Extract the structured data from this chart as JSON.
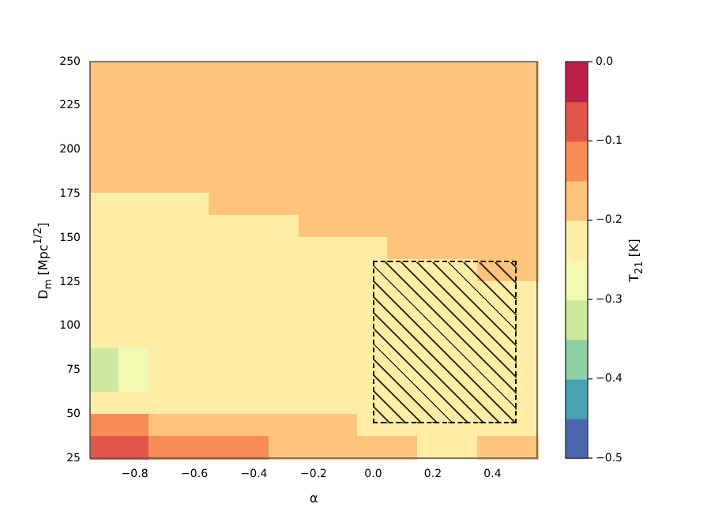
{
  "chart_data": {
    "type": "heatmap",
    "xlabel": "α",
    "ylabel": "D$_{m}$ [Mpc$^{1/2}$]",
    "clabel": "T$_{21}$ [K]",
    "xlim": [
      -0.95,
      0.55
    ],
    "ylim": [
      25,
      250
    ],
    "xticks": [
      {
        "value": -0.8,
        "label": "−0.8"
      },
      {
        "value": -0.6,
        "label": "−0.6"
      },
      {
        "value": -0.4,
        "label": "−0.4"
      },
      {
        "value": -0.2,
        "label": "−0.2"
      },
      {
        "value": 0,
        "label": "0.0"
      },
      {
        "value": 0.2,
        "label": "0.2"
      },
      {
        "value": 0.4,
        "label": "0.4"
      }
    ],
    "yticks": [
      25,
      50,
      75,
      100,
      125,
      150,
      175,
      200,
      225,
      250
    ],
    "clim": [
      -0.5,
      0
    ],
    "cticks": [
      {
        "value": 0,
        "label": "0.0"
      },
      {
        "value": -0.1,
        "label": "−0.1"
      },
      {
        "value": -0.2,
        "label": "−0.2"
      },
      {
        "value": -0.3,
        "label": "−0.3"
      },
      {
        "value": -0.4,
        "label": "−0.4"
      },
      {
        "value": -0.5,
        "label": "−0.5"
      }
    ],
    "cells": [
      [
        -0.175,
        -0.175,
        -0.175,
        -0.175,
        -0.175,
        -0.175,
        -0.175,
        -0.175,
        -0.175,
        -0.175,
        -0.175,
        -0.175,
        -0.175,
        -0.175,
        -0.175
      ],
      [
        -0.175,
        -0.175,
        -0.175,
        -0.175,
        -0.175,
        -0.175,
        -0.175,
        -0.175,
        -0.175,
        -0.175,
        -0.175,
        -0.175,
        -0.175,
        -0.175,
        -0.175
      ],
      [
        -0.175,
        -0.175,
        -0.175,
        -0.175,
        -0.175,
        -0.175,
        -0.175,
        -0.175,
        -0.175,
        -0.175,
        -0.175,
        -0.175,
        -0.175,
        -0.175,
        -0.175
      ],
      [
        -0.175,
        -0.175,
        -0.175,
        -0.175,
        -0.175,
        -0.175,
        -0.175,
        -0.175,
        -0.175,
        -0.175,
        -0.175,
        -0.175,
        -0.175,
        -0.175,
        -0.175
      ],
      [
        -0.175,
        -0.175,
        -0.175,
        -0.175,
        -0.175,
        -0.175,
        -0.175,
        -0.175,
        -0.175,
        -0.175,
        -0.175,
        -0.175,
        -0.175,
        -0.175,
        -0.175
      ],
      [
        -0.175,
        -0.175,
        -0.175,
        -0.175,
        -0.175,
        -0.175,
        -0.175,
        -0.175,
        -0.175,
        -0.175,
        -0.175,
        -0.175,
        -0.175,
        -0.175,
        -0.175
      ],
      [
        -0.225,
        -0.225,
        -0.225,
        -0.225,
        -0.175,
        -0.175,
        -0.175,
        -0.175,
        -0.175,
        -0.175,
        -0.175,
        -0.175,
        -0.175,
        -0.175,
        -0.175
      ],
      [
        -0.225,
        -0.225,
        -0.225,
        -0.225,
        -0.225,
        -0.225,
        -0.225,
        -0.175,
        -0.175,
        -0.175,
        -0.175,
        -0.175,
        -0.175,
        -0.175,
        -0.175
      ],
      [
        -0.225,
        -0.225,
        -0.225,
        -0.225,
        -0.225,
        -0.225,
        -0.225,
        -0.225,
        -0.225,
        -0.225,
        -0.175,
        -0.175,
        -0.175,
        -0.175,
        -0.175
      ],
      [
        -0.225,
        -0.225,
        -0.225,
        -0.225,
        -0.225,
        -0.225,
        -0.225,
        -0.225,
        -0.225,
        -0.225,
        -0.225,
        -0.225,
        -0.225,
        -0.175,
        -0.175
      ],
      [
        -0.225,
        -0.225,
        -0.225,
        -0.225,
        -0.225,
        -0.225,
        -0.225,
        -0.225,
        -0.225,
        -0.225,
        -0.225,
        -0.225,
        -0.225,
        -0.225,
        -0.225
      ],
      [
        -0.225,
        -0.225,
        -0.225,
        -0.225,
        -0.225,
        -0.225,
        -0.225,
        -0.225,
        -0.225,
        -0.225,
        -0.225,
        -0.225,
        -0.225,
        -0.225,
        -0.225
      ],
      [
        -0.225,
        -0.225,
        -0.225,
        -0.225,
        -0.225,
        -0.225,
        -0.225,
        -0.225,
        -0.225,
        -0.225,
        -0.225,
        -0.225,
        -0.225,
        -0.225,
        -0.225
      ],
      [
        -0.325,
        -0.275,
        -0.225,
        -0.225,
        -0.225,
        -0.225,
        -0.225,
        -0.225,
        -0.225,
        -0.225,
        -0.225,
        -0.225,
        -0.225,
        -0.225,
        -0.225
      ],
      [
        -0.325,
        -0.275,
        -0.225,
        -0.225,
        -0.225,
        -0.225,
        -0.225,
        -0.225,
        -0.225,
        -0.225,
        -0.225,
        -0.225,
        -0.225,
        -0.225,
        -0.225
      ],
      [
        -0.225,
        -0.225,
        -0.225,
        -0.225,
        -0.225,
        -0.225,
        -0.225,
        -0.225,
        -0.225,
        -0.225,
        -0.225,
        -0.225,
        -0.225,
        -0.225,
        -0.225
      ],
      [
        -0.125,
        -0.125,
        -0.175,
        -0.175,
        -0.175,
        -0.175,
        -0.175,
        -0.175,
        -0.175,
        -0.225,
        -0.225,
        -0.225,
        -0.225,
        -0.225,
        -0.225
      ],
      [
        -0.075,
        -0.075,
        -0.125,
        -0.125,
        -0.125,
        -0.125,
        -0.175,
        -0.175,
        -0.175,
        -0.175,
        -0.175,
        -0.225,
        -0.225,
        -0.175,
        -0.175
      ]
    ]
  }
}
